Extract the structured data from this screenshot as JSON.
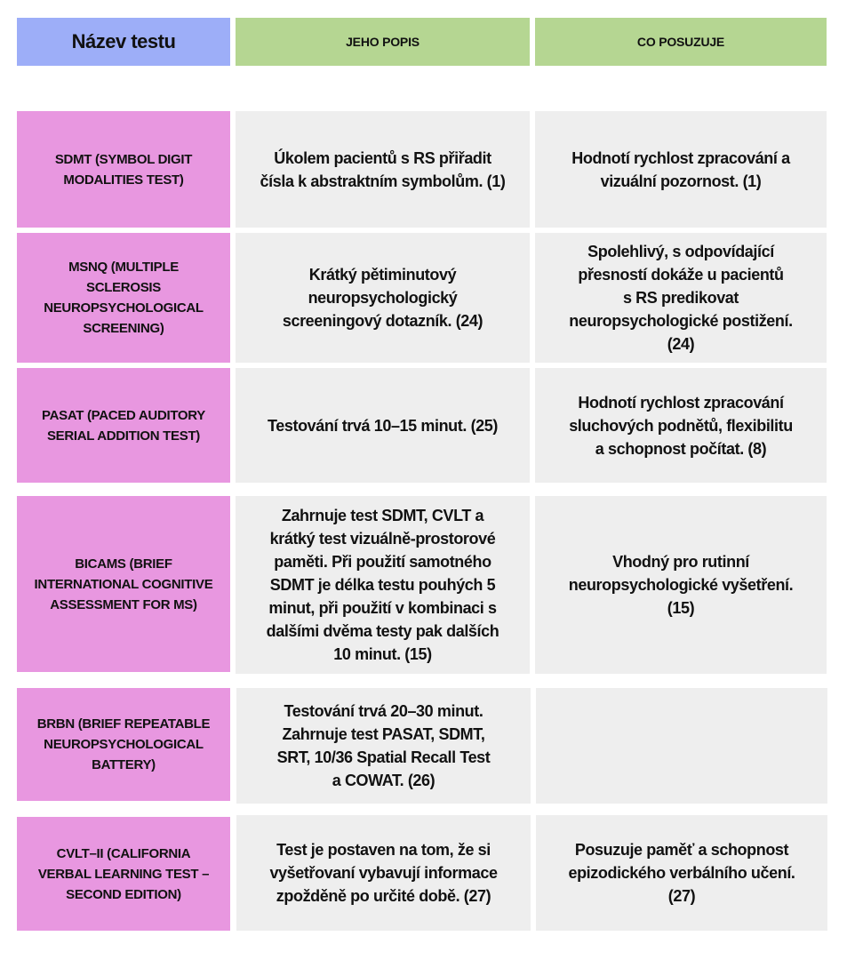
{
  "header": {
    "name": "Název testu",
    "description": "JEHO POPIS",
    "assesses": "CO POSUZUJE"
  },
  "colors": {
    "header_name": "#9daef8",
    "header_other": "#b5d692",
    "test_name": "#e897e0",
    "cell": "#eeeeee"
  },
  "rows": [
    {
      "name": "SDMT (SYMBOL DIGIT\nMODALITIES TEST)",
      "description": "Úkolem pacientů s RS přiřadit\nčísla k abstraktním symbolům. (1)",
      "assesses": "Hodnotí rychlost zpracování a\nvizuální pozornost. (1)"
    },
    {
      "name": "MSNQ (MULTIPLE\nSCLEROSIS\nNEUROPSYCHOLOGICAL\nSCREENING)",
      "description": "Krátký pětiminutový\nneuropsychologický\nscreeningový dotazník. (24)",
      "assesses": "Spolehlivý, s odpovídající\npřesností dokáže u pacientů\ns RS predikovat\nneuropsychologické postižení.\n(24)"
    },
    {
      "name": "PASAT (PACED AUDITORY\nSERIAL ADDITION TEST)",
      "description": "Testování trvá 10–15 minut. (25)",
      "assesses": "Hodnotí rychlost zpracování\nsluchových podnětů, flexibilitu\na schopnost počítat. (8)"
    },
    {
      "name": "BICAMS (BRIEF\nINTERNATIONAL COGNITIVE\nASSESSMENT FOR MS)",
      "description": "Zahrnuje test SDMT, CVLT a\nkrátký test vizuálně-prostorové\npaměti. Při použití samotného\nSDMT je délka testu pouhých 5\nminut, při použití v kombinaci s\ndalšími dvěma testy pak dalších\n10 minut. (15)",
      "assesses": "Vhodný pro rutinní\nneuropsychologické vyšetření.\n(15)"
    },
    {
      "name": "BRBN (BRIEF REPEATABLE\nNEUROPSYCHOLOGICAL\nBATTERY)",
      "description": "Testování trvá 20–30 minut.\nZahrnuje test PASAT, SDMT,\nSRT, 10/36 Spatial Recall Test\na COWAT. (26)",
      "assesses": ""
    },
    {
      "name": "CVLT–II (CALIFORNIA\nVERBAL LEARNING TEST –\nSECOND EDITION)",
      "description": "Test je postaven na tom, že si\nvyšetřovaní vybavují informace\nzpožděně po určité době. (27)",
      "assesses": "Posuzuje paměť a schopnost\nepizodického verbálního učení.\n(27)"
    }
  ]
}
